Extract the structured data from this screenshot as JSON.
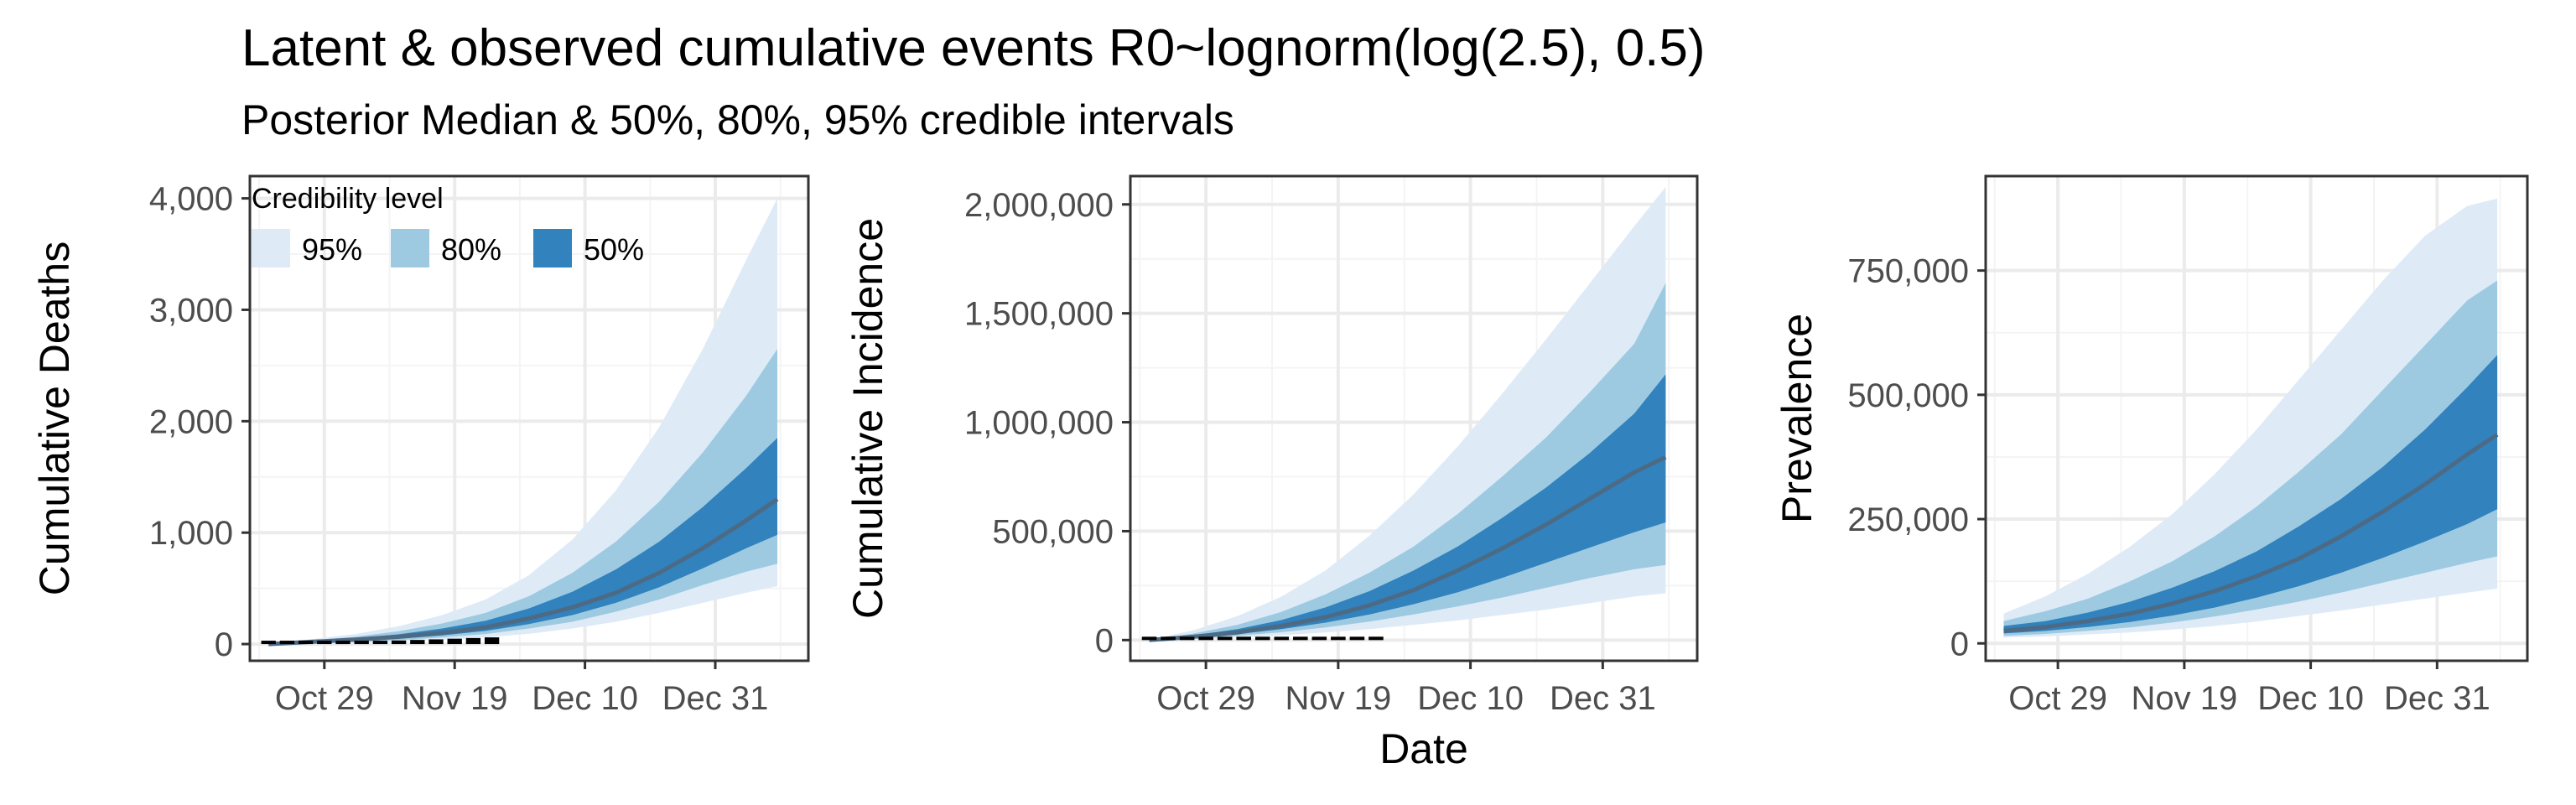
{
  "figure": {
    "title": "Latent & observed cumulative events R0~lognorm(log(2.5), 0.5)",
    "subtitle": "Posterior Median & 50%, 80%, 95% credible intervals",
    "shared_xlabel": "Date"
  },
  "legend": {
    "title": "Credibility level",
    "placement": "inside-top-left of first panel",
    "items": [
      {
        "label": "95%",
        "color": "#deebf7"
      },
      {
        "label": "80%",
        "color": "#9ecae1"
      },
      {
        "label": "50%",
        "color": "#3182bd"
      }
    ]
  },
  "colors": {
    "band_95": "#deebf7",
    "band_80": "#9ecae1",
    "band_50": "#3182bd",
    "median": "#4d6a85",
    "observed": "#000000",
    "grid_major": "#ebebeb",
    "grid_minor": "#f4f4f4",
    "panel_border": "#333333"
  },
  "chart_data": [
    {
      "type": "area",
      "ylabel": "Cumulative Deaths",
      "xlabel": "",
      "x_ticks": [
        {
          "date": "2020-10-29",
          "label": "Oct 29"
        },
        {
          "date": "2020-11-19",
          "label": "Nov 19"
        },
        {
          "date": "2020-12-10",
          "label": "Dec 10"
        },
        {
          "date": "2020-12-31",
          "label": "Dec 31"
        }
      ],
      "xlim": [
        "2020-10-17",
        "2021-01-15"
      ],
      "ylim": [
        -150,
        4200
      ],
      "y_ticks": [
        {
          "value": 0,
          "label": "0"
        },
        {
          "value": 1000,
          "label": "1,000"
        },
        {
          "value": 2000,
          "label": "2,000"
        },
        {
          "value": 3000,
          "label": "3,000"
        },
        {
          "value": 4000,
          "label": "4,000"
        }
      ],
      "grid": true,
      "x": [
        "2020-10-20",
        "2020-10-27",
        "2020-11-03",
        "2020-11-10",
        "2020-11-17",
        "2020-11-24",
        "2020-12-01",
        "2020-12-08",
        "2020-12-15",
        "2020-12-22",
        "2020-12-29",
        "2021-01-05",
        "2021-01-10"
      ],
      "median": [
        0,
        20,
        40,
        65,
        100,
        150,
        230,
        330,
        460,
        640,
        860,
        1110,
        1300
      ],
      "ci_95": {
        "lower": [
          0,
          5,
          12,
          22,
          38,
          60,
          92,
          140,
          200,
          280,
          370,
          460,
          520
        ],
        "upper": [
          0,
          45,
          90,
          160,
          260,
          400,
          620,
          940,
          1380,
          1950,
          2650,
          3450,
          4000
        ]
      },
      "ci_80": {
        "lower": [
          0,
          9,
          20,
          35,
          60,
          90,
          140,
          200,
          290,
          400,
          530,
          650,
          720
        ],
        "upper": [
          0,
          32,
          66,
          115,
          185,
          280,
          430,
          640,
          920,
          1280,
          1720,
          2230,
          2650
        ]
      },
      "ci_50": {
        "lower": [
          0,
          14,
          28,
          48,
          78,
          118,
          180,
          260,
          370,
          510,
          680,
          860,
          980
        ],
        "upper": [
          0,
          26,
          52,
          88,
          140,
          210,
          320,
          470,
          670,
          920,
          1230,
          1580,
          1850
        ]
      },
      "observed": {
        "x": [
          "2020-10-20",
          "2020-10-23",
          "2020-10-26",
          "2020-10-29",
          "2020-11-01",
          "2020-11-04",
          "2020-11-07",
          "2020-11-10",
          "2020-11-13",
          "2020-11-16",
          "2020-11-19",
          "2020-11-22",
          "2020-11-25"
        ],
        "values": [
          2,
          6,
          10,
          14,
          18,
          22,
          27,
          32,
          37,
          42,
          48,
          54,
          60
        ]
      }
    },
    {
      "type": "area",
      "ylabel": "Cumulative Incidence",
      "xlabel": "Date",
      "x_ticks": [
        {
          "date": "2020-10-29",
          "label": "Oct 29"
        },
        {
          "date": "2020-11-19",
          "label": "Nov 19"
        },
        {
          "date": "2020-12-10",
          "label": "Dec 10"
        },
        {
          "date": "2020-12-31",
          "label": "Dec 31"
        }
      ],
      "xlim": [
        "2020-10-17",
        "2021-01-15"
      ],
      "ylim": [
        -95000,
        2130000
      ],
      "y_ticks": [
        {
          "value": 0,
          "label": "0"
        },
        {
          "value": 500000,
          "label": "500,000"
        },
        {
          "value": 1000000,
          "label": "1,000,000"
        },
        {
          "value": 1500000,
          "label": "1,500,000"
        },
        {
          "value": 2000000,
          "label": "2,000,000"
        }
      ],
      "grid": true,
      "x": [
        "2020-10-20",
        "2020-10-27",
        "2020-11-03",
        "2020-11-10",
        "2020-11-17",
        "2020-11-24",
        "2020-12-01",
        "2020-12-08",
        "2020-12-15",
        "2020-12-22",
        "2020-12-29",
        "2021-01-05",
        "2021-01-10"
      ],
      "median": [
        0,
        15000,
        35000,
        65000,
        105000,
        160000,
        230000,
        320000,
        420000,
        530000,
        650000,
        770000,
        840000
      ],
      "ci_95": {
        "lower": [
          0,
          5000,
          12000,
          22000,
          35000,
          50000,
          70000,
          90000,
          115000,
          140000,
          170000,
          200000,
          215000
        ],
        "upper": [
          0,
          45000,
          110000,
          200000,
          320000,
          480000,
          670000,
          890000,
          1130000,
          1380000,
          1640000,
          1900000,
          2080000
        ]
      },
      "ci_80": {
        "lower": [
          0,
          8000,
          20000,
          36000,
          58000,
          85000,
          118000,
          155000,
          195000,
          240000,
          285000,
          325000,
          345000
        ],
        "upper": [
          0,
          30000,
          70000,
          130000,
          210000,
          310000,
          430000,
          580000,
          750000,
          930000,
          1140000,
          1360000,
          1640000
        ]
      },
      "ci_50": {
        "lower": [
          0,
          11000,
          27000,
          50000,
          80000,
          118000,
          165000,
          220000,
          285000,
          355000,
          425000,
          495000,
          540000
        ],
        "upper": [
          0,
          22000,
          50000,
          92000,
          150000,
          225000,
          320000,
          430000,
          560000,
          700000,
          860000,
          1040000,
          1220000
        ]
      },
      "observed": {
        "x": [
          "2020-10-20",
          "2020-10-23",
          "2020-10-26",
          "2020-10-29",
          "2020-11-01",
          "2020-11-04",
          "2020-11-07",
          "2020-11-10",
          "2020-11-13",
          "2020-11-16",
          "2020-11-19",
          "2020-11-22",
          "2020-11-25"
        ],
        "values": [
          300,
          1000,
          2000,
          3200,
          4400,
          5600,
          7000,
          8400,
          9800,
          11200,
          12600,
          14000,
          15500
        ]
      }
    },
    {
      "type": "area",
      "ylabel": "Prevalence",
      "xlabel": "",
      "x_ticks": [
        {
          "date": "2020-10-29",
          "label": "Oct 29"
        },
        {
          "date": "2020-11-19",
          "label": "Nov 19"
        },
        {
          "date": "2020-12-10",
          "label": "Dec 10"
        },
        {
          "date": "2020-12-31",
          "label": "Dec 31"
        }
      ],
      "xlim": [
        "2020-10-17",
        "2021-01-15"
      ],
      "ylim": [
        -35000,
        940000
      ],
      "y_ticks": [
        {
          "value": 0,
          "label": "0"
        },
        {
          "value": 250000,
          "label": "250,000"
        },
        {
          "value": 500000,
          "label": "500,000"
        },
        {
          "value": 750000,
          "label": "750,000"
        }
      ],
      "grid": true,
      "x": [
        "2020-10-20",
        "2020-10-27",
        "2020-11-03",
        "2020-11-10",
        "2020-11-17",
        "2020-11-24",
        "2020-12-01",
        "2020-12-08",
        "2020-12-15",
        "2020-12-22",
        "2020-12-29",
        "2021-01-05",
        "2021-01-10"
      ],
      "median": [
        25000,
        33000,
        45000,
        60000,
        80000,
        105000,
        135000,
        170000,
        215000,
        265000,
        320000,
        380000,
        420000
      ],
      "ci_95": {
        "lower": [
          12000,
          14000,
          18000,
          22000,
          28000,
          35000,
          44000,
          55000,
          66000,
          78000,
          90000,
          102000,
          110000
        ],
        "upper": [
          60000,
          95000,
          140000,
          195000,
          260000,
          340000,
          430000,
          530000,
          630000,
          730000,
          820000,
          880000,
          895000
        ]
      },
      "ci_80": {
        "lower": [
          15000,
          19000,
          25000,
          32000,
          42000,
          54000,
          68000,
          84000,
          102000,
          122000,
          142000,
          162000,
          175000
        ],
        "upper": [
          45000,
          65000,
          90000,
          125000,
          165000,
          215000,
          275000,
          345000,
          420000,
          510000,
          600000,
          690000,
          730000
        ]
      },
      "ci_50": {
        "lower": [
          20000,
          25000,
          33000,
          43000,
          56000,
          72000,
          92000,
          115000,
          142000,
          172000,
          205000,
          240000,
          270000
        ],
        "upper": [
          35000,
          45000,
          62000,
          84000,
          112000,
          145000,
          185000,
          235000,
          290000,
          355000,
          430000,
          515000,
          580000
        ]
      }
    }
  ]
}
